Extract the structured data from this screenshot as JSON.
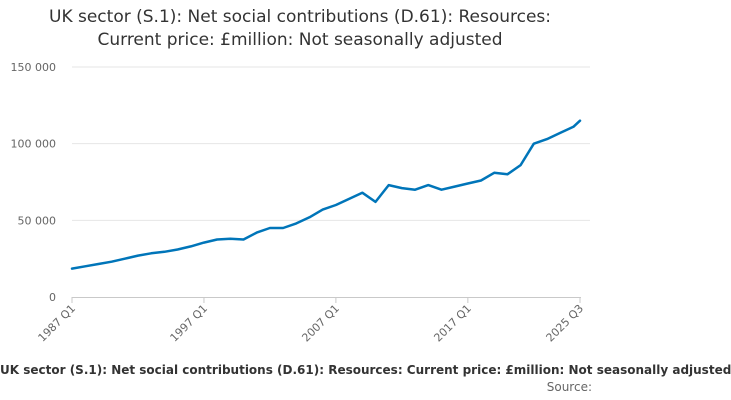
{
  "title_line1": "UK sector (S.1): Net social contributions (D.61): Resources:",
  "title_line2": "Current price: £million: Not seasonally adjusted",
  "caption": "UK sector (S.1): Net social contributions (D.61): Resources: Current price: £million: Not seasonally adjusted",
  "source_label": "Source:",
  "chart_data": {
    "type": "line",
    "title": "UK sector (S.1): Net social contributions (D.61): Resources: Current price: £million: Not seasonally adjusted",
    "xlabel": "",
    "ylabel": "",
    "ylim": [
      0,
      150000
    ],
    "yticks": [
      0,
      50000,
      100000,
      150000
    ],
    "ytick_labels": [
      "0",
      "50 000",
      "100 000",
      "150 000"
    ],
    "xticks": [
      "1987 Q1",
      "1997 Q1",
      "2007 Q1",
      "2017 Q1",
      "2025 Q3"
    ],
    "grid": true,
    "legend": "none",
    "color": "#0075b9",
    "series": [
      {
        "x": [
          "1987 Q1",
          "1988 Q1",
          "1989 Q1",
          "1990 Q1",
          "1991 Q1",
          "1992 Q1",
          "1993 Q1",
          "1994 Q1",
          "1995 Q1",
          "1996 Q1",
          "1997 Q1",
          "1998 Q1",
          "1999 Q1",
          "2000 Q1",
          "2001 Q1",
          "2002 Q1",
          "2003 Q1",
          "2004 Q1",
          "2005 Q1",
          "2006 Q1",
          "2007 Q1",
          "2008 Q1",
          "2009 Q1",
          "2010 Q1",
          "2011 Q1",
          "2012 Q1",
          "2013 Q1",
          "2014 Q1",
          "2015 Q1",
          "2016 Q1",
          "2017 Q1",
          "2018 Q1",
          "2019 Q1",
          "2020 Q1",
          "2021 Q1",
          "2022 Q1",
          "2023 Q1",
          "2024 Q1",
          "2025 Q1",
          "2025 Q3"
        ],
        "values": [
          18500,
          20000,
          21500,
          23000,
          25000,
          27000,
          28500,
          29500,
          31000,
          33000,
          35500,
          37500,
          38000,
          37500,
          42000,
          45000,
          45000,
          48000,
          52000,
          57000,
          60000,
          64000,
          68000,
          62000,
          73000,
          71000,
          70000,
          73000,
          70000,
          72000,
          74000,
          76000,
          81000,
          80000,
          86000,
          100000,
          103000,
          107000,
          111000,
          115000
        ]
      }
    ]
  }
}
